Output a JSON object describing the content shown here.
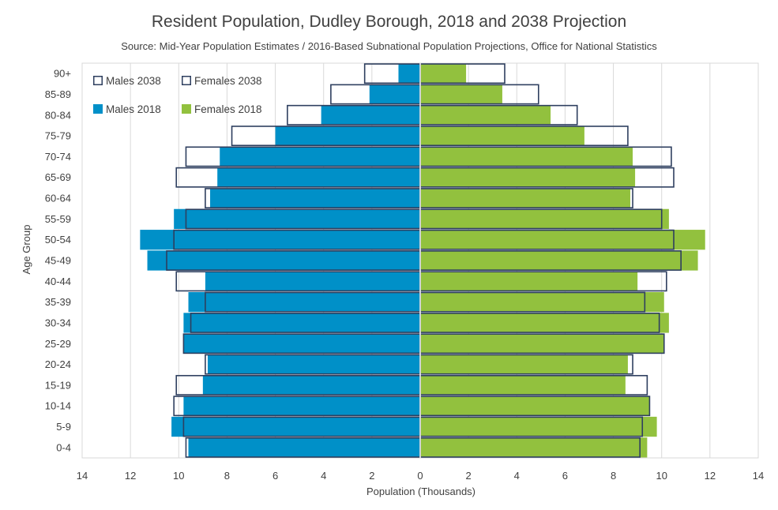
{
  "title": "Resident Population, Dudley Borough, 2018 and 2038 Projection",
  "subtitle": "Source: Mid-Year Population Estimates / 2016-Based Subnational Population Projections, Office for National Statistics",
  "colors": {
    "males_2018": "#0090C8",
    "females_2018": "#92C13E",
    "outline_2038": "#2E3F5F",
    "grid": "#D9D9D9",
    "text": "#404040"
  },
  "chart_data": {
    "type": "bar",
    "orientation": "horizontal",
    "layout": "population-pyramid",
    "title": "Resident Population, Dudley Borough, 2018 and 2038 Projection",
    "xlabel": "Population (Thousands)",
    "ylabel": "Age Group",
    "xlim": [
      -14,
      14
    ],
    "x_ticks": [
      "14",
      "12",
      "10",
      "8",
      "6",
      "4",
      "2",
      "0",
      "2",
      "4",
      "6",
      "8",
      "10",
      "12",
      "14"
    ],
    "grid": "vertical",
    "legend_position": "top-left",
    "categories": [
      "0-4",
      "5-9",
      "10-14",
      "15-19",
      "20-24",
      "25-29",
      "30-34",
      "35-39",
      "40-44",
      "45-49",
      "50-54",
      "55-59",
      "60-64",
      "65-69",
      "70-74",
      "75-79",
      "80-84",
      "85-89",
      "90+"
    ],
    "series": [
      {
        "name": "Males 2018",
        "side": "left",
        "style": "filled",
        "values": [
          9.6,
          10.3,
          9.8,
          9.0,
          8.8,
          9.8,
          9.8,
          9.6,
          8.9,
          11.3,
          11.6,
          10.2,
          8.7,
          8.4,
          8.3,
          6.0,
          4.1,
          2.1,
          0.9
        ]
      },
      {
        "name": "Females 2018",
        "side": "right",
        "style": "filled",
        "values": [
          9.4,
          9.8,
          9.5,
          8.5,
          8.6,
          10.1,
          10.3,
          10.1,
          9.0,
          11.5,
          11.8,
          10.3,
          8.7,
          8.9,
          8.8,
          6.8,
          5.4,
          3.4,
          1.9
        ]
      },
      {
        "name": "Males 2038",
        "side": "left",
        "style": "outline",
        "values": [
          9.7,
          9.8,
          10.2,
          10.1,
          8.9,
          9.8,
          9.5,
          8.9,
          10.1,
          10.5,
          10.2,
          9.7,
          8.9,
          10.1,
          9.7,
          7.8,
          5.5,
          3.7,
          2.3
        ]
      },
      {
        "name": "Females 2038",
        "side": "right",
        "style": "outline",
        "values": [
          9.1,
          9.2,
          9.5,
          9.4,
          8.8,
          10.1,
          9.9,
          9.3,
          10.2,
          10.8,
          10.5,
          10.0,
          8.8,
          10.5,
          10.4,
          8.6,
          6.5,
          4.9,
          3.5
        ]
      }
    ],
    "legend": [
      {
        "label": "Males 2038",
        "style": "outline"
      },
      {
        "label": "Females 2038",
        "style": "outline"
      },
      {
        "label": "Males 2018",
        "style": "filled"
      },
      {
        "label": "Females 2018",
        "style": "filled"
      }
    ]
  }
}
